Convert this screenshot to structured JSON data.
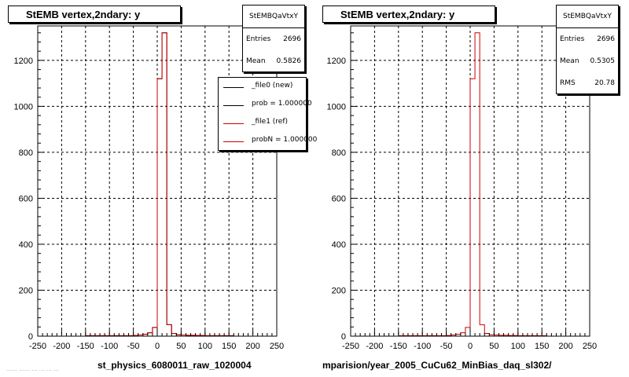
{
  "colors": {
    "ref": "#000000",
    "new": "#cc0000",
    "axis": "#000000",
    "grid": "#000000"
  },
  "panels": [
    {
      "title": "StEMB  vertex,2ndary: y",
      "stats": {
        "name": "StEMBQaVtxY",
        "rows": [
          {
            "key": "Entries",
            "value": "2696"
          },
          {
            "key": "Mean",
            "value": "0.5826"
          }
        ]
      },
      "legend": {
        "entries": [
          {
            "label": "_file0 (new)",
            "color": "#000000"
          },
          {
            "label": "prob = 1.000000",
            "color": "#000000"
          },
          {
            "label": "_file1 (ref)",
            "color": "#cc0000"
          },
          {
            "label": "probN = 1.000000",
            "color": "#cc0000"
          }
        ]
      },
      "file_label": "st_physics_6080011_raw_1020004"
    },
    {
      "title": "StEMB  vertex,2ndary: y",
      "stats": {
        "name": "StEMBQaVtxY",
        "rows": [
          {
            "key": "Entries",
            "value": "2696"
          },
          {
            "key": "Mean",
            "value": "0.5305"
          },
          {
            "key": "RMS",
            "value": "20.78"
          }
        ]
      },
      "file_label": "mparision/year_2005_CuCu62_MinBias_daq_sl302/"
    }
  ],
  "footer": "…… ……  …  … …  …",
  "chart_data": [
    {
      "type": "histogram",
      "title": "StEMB  vertex,2ndary: y",
      "xlim": [
        -250,
        250
      ],
      "ylim": [
        0,
        1350
      ],
      "xticks": [
        -250,
        -200,
        -150,
        -100,
        -50,
        0,
        50,
        100,
        150,
        200,
        250
      ],
      "yticks": [
        0,
        200,
        400,
        600,
        800,
        1000,
        1200
      ],
      "grid": true,
      "bin_width": 10,
      "series": [
        {
          "name": "_file0 (new)",
          "color": "#000000",
          "bin_edges_start": -250,
          "values": [
            0,
            0,
            0,
            0,
            0,
            0,
            0,
            0,
            0,
            0,
            2,
            2,
            2,
            2,
            2,
            2,
            2,
            2,
            2,
            2,
            3,
            5,
            8,
            15,
            38,
            1120,
            1320,
            50,
            12,
            6,
            5,
            4,
            4,
            3,
            3,
            2,
            2,
            2,
            2,
            2,
            2,
            0,
            0,
            0,
            0,
            0,
            0,
            0,
            0,
            0
          ]
        },
        {
          "name": "_file1 (ref)",
          "color": "#cc0000",
          "bin_edges_start": -250,
          "values": [
            0,
            0,
            0,
            0,
            0,
            0,
            0,
            0,
            0,
            0,
            2,
            2,
            2,
            2,
            2,
            2,
            2,
            2,
            2,
            2,
            3,
            5,
            8,
            15,
            38,
            1120,
            1320,
            50,
            12,
            6,
            5,
            4,
            4,
            3,
            3,
            2,
            2,
            2,
            2,
            2,
            2,
            0,
            0,
            0,
            0,
            0,
            0,
            0,
            0,
            0
          ]
        }
      ]
    },
    {
      "type": "histogram",
      "title": "StEMB  vertex,2ndary: y",
      "xlim": [
        -250,
        250
      ],
      "ylim": [
        0,
        1350
      ],
      "xticks": [
        -250,
        -200,
        -150,
        -100,
        -50,
        0,
        50,
        100,
        150,
        200,
        250
      ],
      "yticks": [
        0,
        200,
        400,
        600,
        800,
        1000,
        1200
      ],
      "grid": true,
      "bin_width": 10,
      "series": [
        {
          "name": "_file1 (ref)",
          "color": "#cc0000",
          "bin_edges_start": -250,
          "values": [
            0,
            0,
            0,
            0,
            0,
            0,
            0,
            0,
            0,
            0,
            2,
            2,
            2,
            2,
            2,
            2,
            2,
            2,
            2,
            2,
            3,
            5,
            8,
            15,
            38,
            1120,
            1320,
            50,
            12,
            6,
            5,
            4,
            4,
            3,
            3,
            2,
            2,
            2,
            2,
            2,
            2,
            0,
            0,
            0,
            0,
            0,
            0,
            0,
            0,
            0
          ]
        }
      ]
    }
  ]
}
